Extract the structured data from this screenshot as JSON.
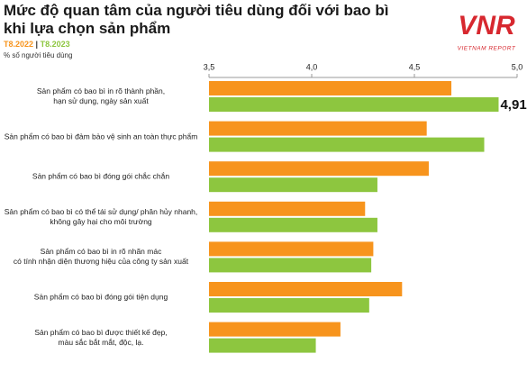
{
  "chart_data": {
    "type": "hbar",
    "title": "Mức độ quan tâm của người tiêu dùng đối với bao bì\nkhi lựa chọn sản phẩm",
    "subtitle": "% số người tiêu dùng",
    "logo": {
      "mark": "VNR",
      "text": "VIETNAM REPORT"
    },
    "categories": [
      "Sản phẩm có bao bì in rõ thành phần,\nhạn sử dụng, ngày sản xuất",
      "Sản phẩm có bao bì đảm bảo vệ sinh an toàn thực phẩm",
      "Sản phẩm có bao bì đóng gói chắc chắn",
      "Sản phẩm có bao bì có thể tái sử dụng/ phân hủy nhanh,\nkhông gây hại cho môi trường",
      "Sản phẩm có bao bì in rõ nhãn mác\ncó tính nhận diện thương hiệu của công ty sản xuất",
      "Sản phẩm có bao bì đóng gói tiện dụng",
      "Sản phẩm có bao bì được thiết kế đẹp,\nmàu sắc bắt mắt, độc, lạ."
    ],
    "series": [
      {
        "name": "T8.2022",
        "color": "#f7941d",
        "values": [
          4.68,
          4.56,
          4.57,
          4.26,
          4.3,
          4.44,
          4.14
        ]
      },
      {
        "name": "T8.2023",
        "color": "#8dc63f",
        "values": [
          4.91,
          4.84,
          4.32,
          4.32,
          4.29,
          4.28,
          4.02
        ],
        "value_labels": [
          "4,91",
          null,
          null,
          null,
          null,
          null,
          null
        ]
      }
    ],
    "xlim": [
      3.5,
      5.0
    ],
    "xticks": [
      {
        "value": 3.5,
        "label": "3,5"
      },
      {
        "value": 4.0,
        "label": "4,0"
      },
      {
        "value": 4.5,
        "label": "4,5"
      },
      {
        "value": 5.0,
        "label": "5,0"
      }
    ]
  }
}
